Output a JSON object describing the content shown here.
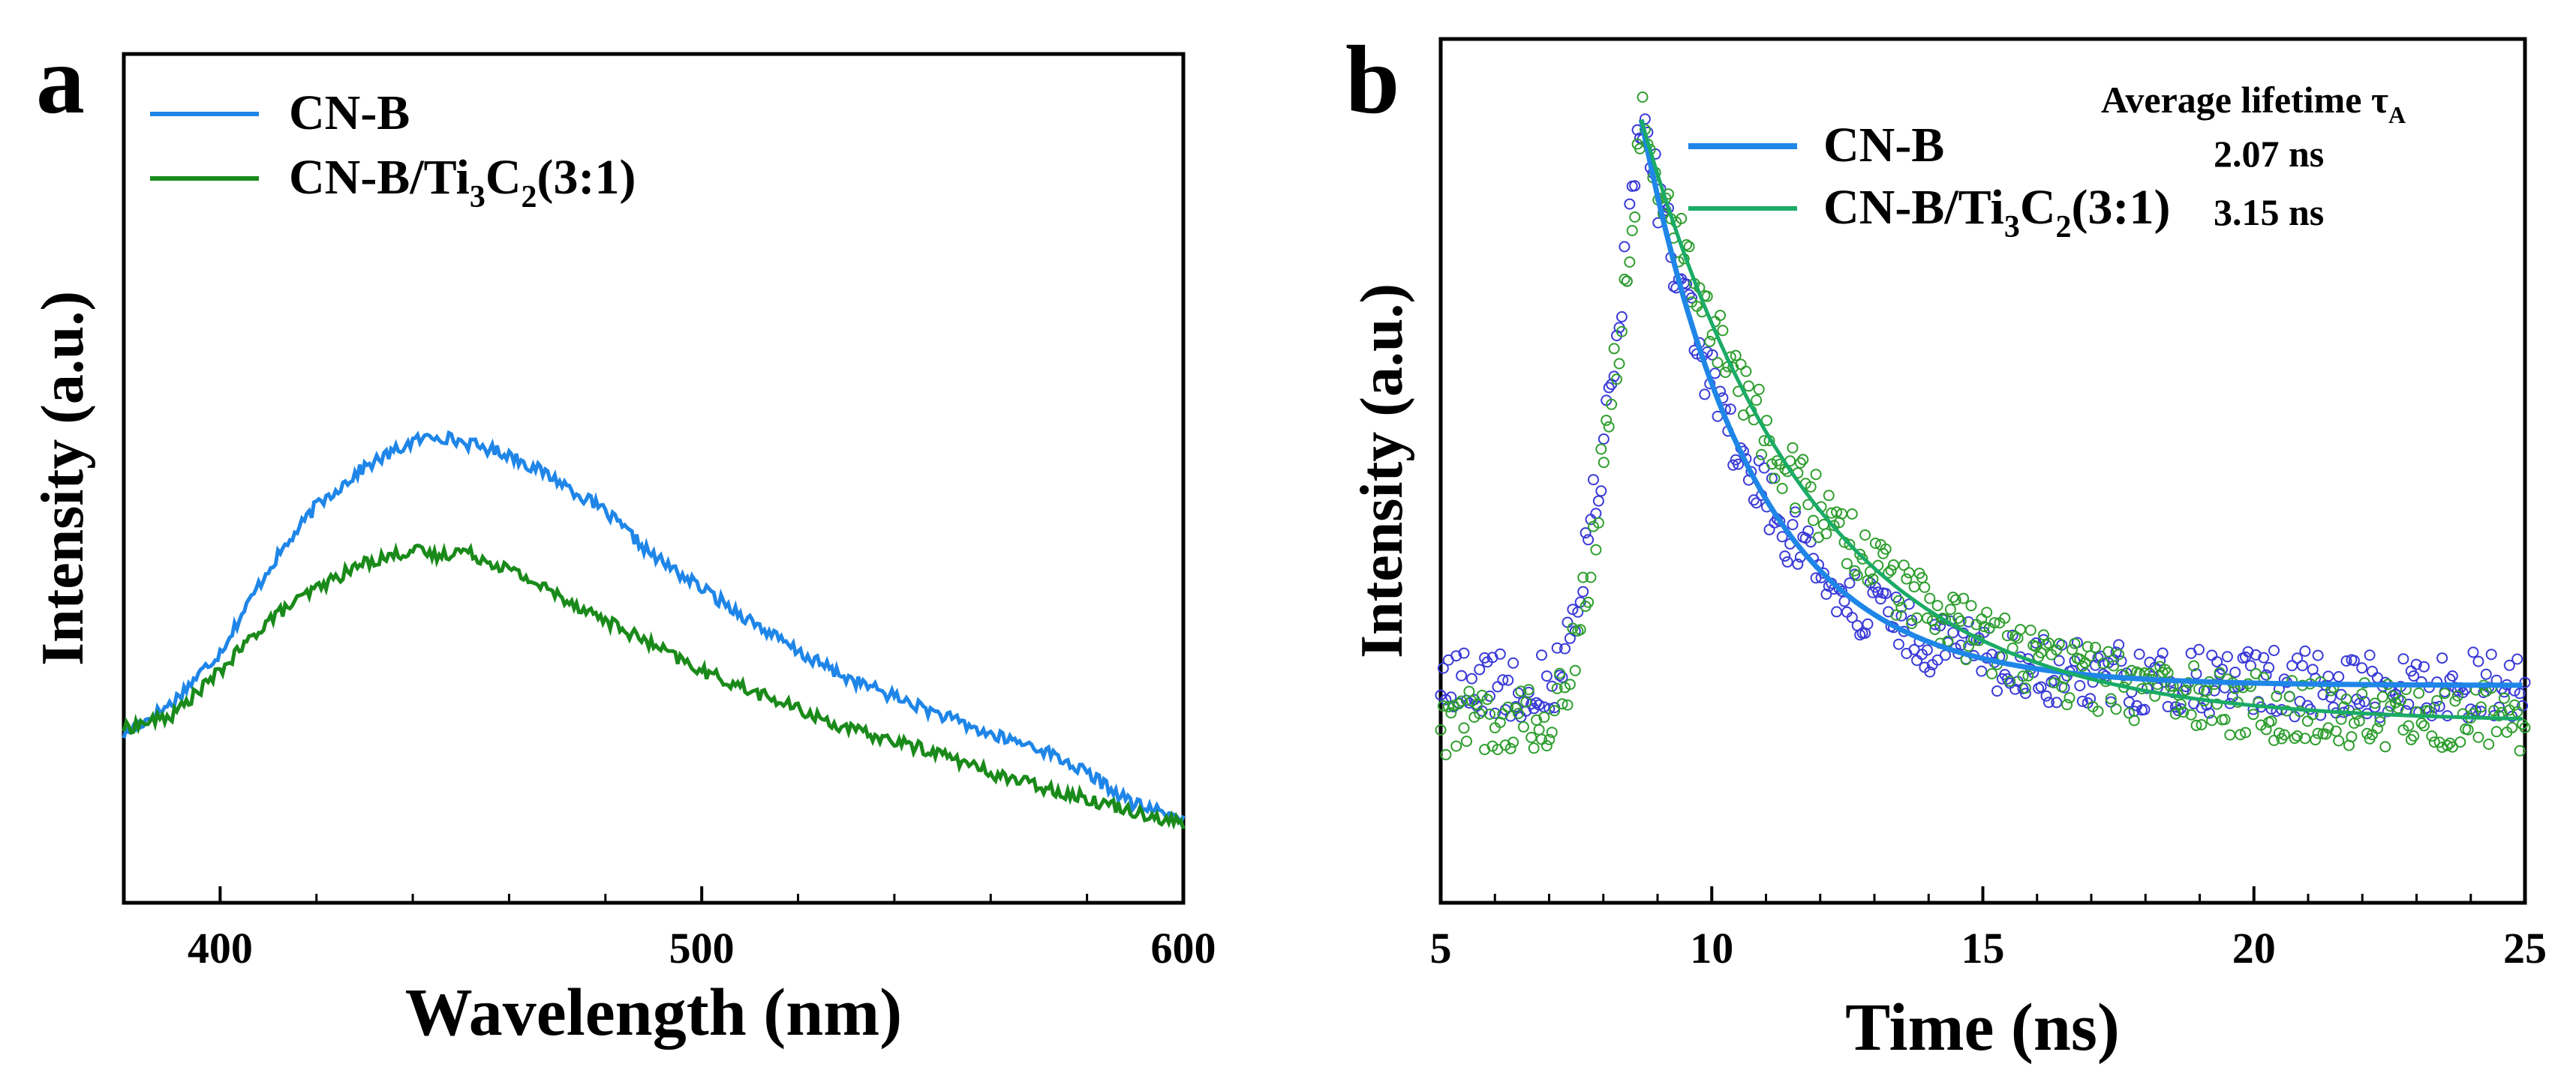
{
  "figure": {
    "colors": {
      "blue": "#1f86e8",
      "green": "#1a8a1a",
      "teal": "#1aab66",
      "marker_blue": "#3a3ad8",
      "marker_green": "#2e9e2e"
    }
  },
  "chart_data": [
    {
      "panel_label": "a",
      "type": "line",
      "title": "",
      "xlabel": "Wavelength (nm)",
      "ylabel": "Intensity (a.u.)",
      "xlim": [
        380,
        600
      ],
      "ylim": [
        0,
        1
      ],
      "xticks": [
        400,
        500,
        600
      ],
      "grid": false,
      "legend_position": "top-left",
      "x": [
        380,
        390,
        400,
        410,
        420,
        430,
        440,
        445,
        450,
        460,
        470,
        480,
        490,
        500,
        510,
        520,
        530,
        540,
        550,
        560,
        570,
        580,
        590,
        600
      ],
      "series": [
        {
          "name": "CN-B",
          "color": "#1f86e8",
          "values": [
            0.2,
            0.25,
            0.33,
            0.46,
            0.56,
            0.62,
            0.66,
            0.67,
            0.66,
            0.64,
            0.6,
            0.55,
            0.48,
            0.43,
            0.38,
            0.33,
            0.29,
            0.26,
            0.23,
            0.2,
            0.18,
            0.14,
            0.09,
            0.07
          ]
        },
        {
          "name": "CN-B/Ti3C2(3:1)",
          "label_main": "CN-B/Ti",
          "label_sub1": "3",
          "label_mid": "C",
          "label_sub2": "2",
          "label_tail": "(3:1)",
          "color": "#1a8a1a",
          "values": [
            0.21,
            0.23,
            0.3,
            0.38,
            0.43,
            0.47,
            0.49,
            0.48,
            0.49,
            0.46,
            0.42,
            0.38,
            0.34,
            0.3,
            0.27,
            0.24,
            0.21,
            0.19,
            0.17,
            0.14,
            0.12,
            0.1,
            0.08,
            0.06
          ]
        }
      ]
    },
    {
      "panel_label": "b",
      "type": "scatter",
      "title": "",
      "xlabel": "Time (ns)",
      "ylabel": "Intensity (a.u.)",
      "xlim": [
        5,
        25
      ],
      "ylim": [
        0,
        1
      ],
      "xticks": [
        5,
        10,
        15,
        20,
        25
      ],
      "grid": false,
      "legend_position": "top-right",
      "legend_header_main": "Average lifetime τ",
      "legend_header_sub": "A",
      "peak_time": 8.7,
      "rise_start": 7.0,
      "series": [
        {
          "name": "CN-B",
          "lifetime": "2.07 ns",
          "color": "#1f86e8",
          "marker_color": "#3a3ad8",
          "baseline": 0.21,
          "peak": 0.98,
          "tau_ns": 2.07
        },
        {
          "name": "CN-B/Ti3C2(3:1)",
          "label_main": "CN-B/Ti",
          "label_sub1": "3",
          "label_mid": "C",
          "label_sub2": "2",
          "label_tail": "(3:1)",
          "lifetime": "3.15 ns",
          "color": "#1aab66",
          "marker_color": "#2e9e2e",
          "baseline": 0.16,
          "peak": 0.98,
          "tau_ns": 3.15
        }
      ]
    }
  ]
}
